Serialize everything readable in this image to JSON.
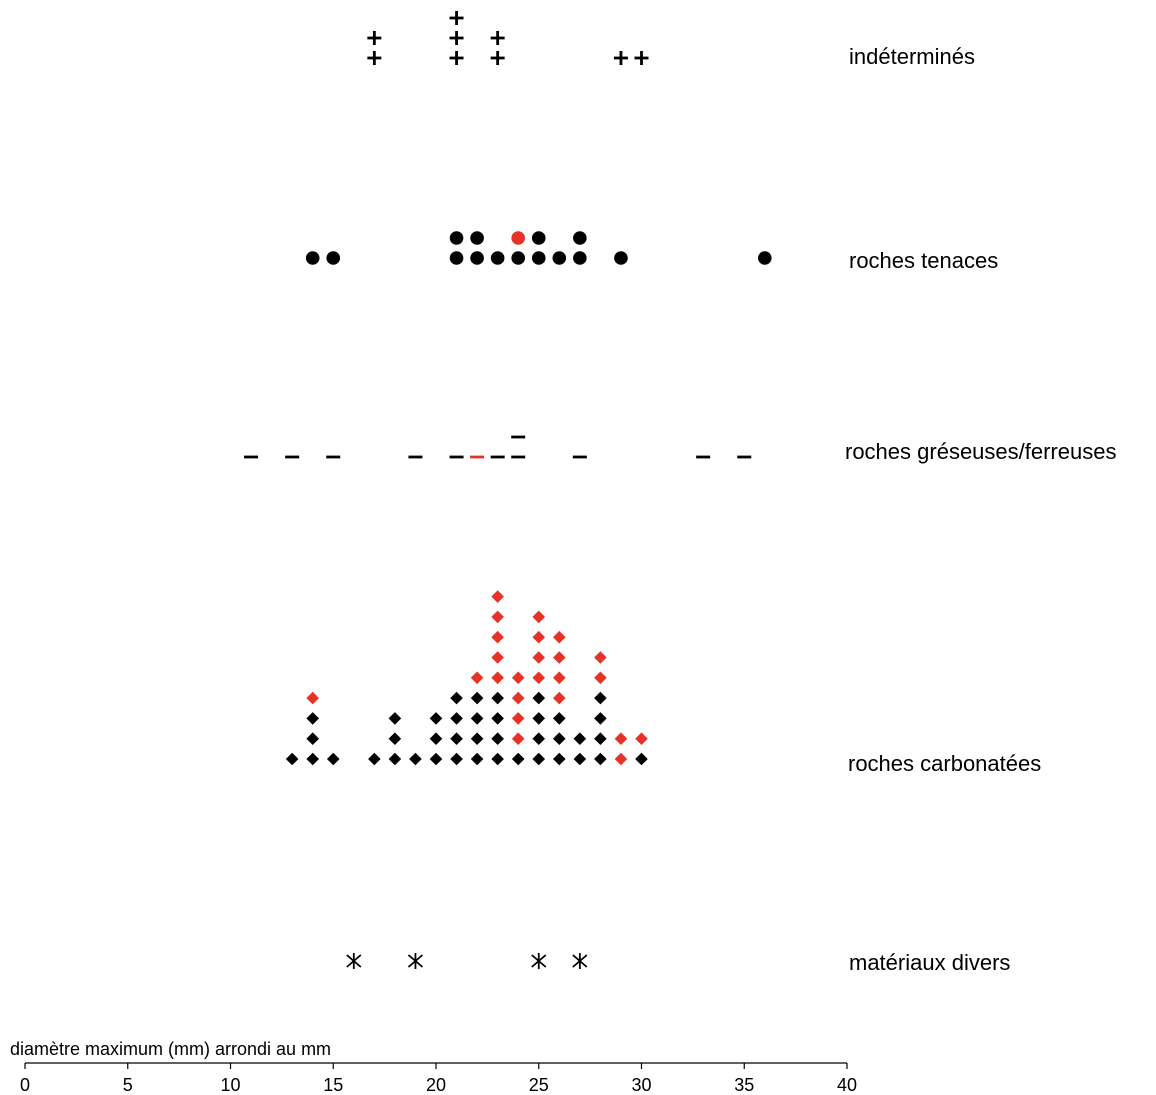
{
  "chart_data": {
    "type": "scatter",
    "subtype": "dot-plot",
    "xlabel": "diamètre maximum (mm) arrondi au mm",
    "xlim": [
      0,
      40
    ],
    "xticks": [
      0,
      5,
      10,
      15,
      20,
      25,
      30,
      35,
      40
    ],
    "grid": false,
    "legend": "none",
    "colors": {
      "black": "#000000",
      "red": "#e63327"
    },
    "categories": [
      "indéterminés",
      "roches tenaces",
      "roches gréseuses/ferreuses",
      "roches carbonatées",
      "matériaux divers"
    ],
    "series": [
      {
        "name": "indéterminés",
        "marker": "plus",
        "columns": [
          {
            "x": 17,
            "stack": [
              "black",
              "black"
            ]
          },
          {
            "x": 21,
            "stack": [
              "black",
              "black",
              "black"
            ]
          },
          {
            "x": 23,
            "stack": [
              "black",
              "black"
            ]
          },
          {
            "x": 29,
            "stack": [
              "black"
            ]
          },
          {
            "x": 30,
            "stack": [
              "black"
            ]
          }
        ]
      },
      {
        "name": "roches tenaces",
        "marker": "circle",
        "columns": [
          {
            "x": 14,
            "stack": [
              "black"
            ]
          },
          {
            "x": 15,
            "stack": [
              "black"
            ]
          },
          {
            "x": 21,
            "stack": [
              "black",
              "black"
            ]
          },
          {
            "x": 22,
            "stack": [
              "black",
              "black"
            ]
          },
          {
            "x": 23,
            "stack": [
              "black"
            ]
          },
          {
            "x": 24,
            "stack": [
              "black",
              "red"
            ]
          },
          {
            "x": 25,
            "stack": [
              "black",
              "black"
            ]
          },
          {
            "x": 26,
            "stack": [
              "black"
            ]
          },
          {
            "x": 27,
            "stack": [
              "black",
              "black"
            ]
          },
          {
            "x": 29,
            "stack": [
              "black"
            ]
          },
          {
            "x": 36,
            "stack": [
              "black"
            ]
          }
        ]
      },
      {
        "name": "roches gréseuses/ferreuses",
        "marker": "dash",
        "columns": [
          {
            "x": 11,
            "stack": [
              "black"
            ]
          },
          {
            "x": 13,
            "stack": [
              "black"
            ]
          },
          {
            "x": 15,
            "stack": [
              "black"
            ]
          },
          {
            "x": 19,
            "stack": [
              "black"
            ]
          },
          {
            "x": 21,
            "stack": [
              "black"
            ]
          },
          {
            "x": 22,
            "stack": [
              "red"
            ]
          },
          {
            "x": 23,
            "stack": [
              "black"
            ]
          },
          {
            "x": 24,
            "stack": [
              "black",
              "black"
            ]
          },
          {
            "x": 27,
            "stack": [
              "black"
            ]
          },
          {
            "x": 33,
            "stack": [
              "black"
            ]
          },
          {
            "x": 35,
            "stack": [
              "black"
            ]
          }
        ]
      },
      {
        "name": "roches carbonatées",
        "marker": "diamond",
        "columns": [
          {
            "x": 13,
            "stack": [
              "black"
            ]
          },
          {
            "x": 14,
            "stack": [
              "black",
              "black",
              "black",
              "red"
            ]
          },
          {
            "x": 15,
            "stack": [
              "black"
            ]
          },
          {
            "x": 17,
            "stack": [
              "black"
            ]
          },
          {
            "x": 18,
            "stack": [
              "black",
              "black",
              "black"
            ]
          },
          {
            "x": 19,
            "stack": [
              "black"
            ]
          },
          {
            "x": 20,
            "stack": [
              "black",
              "black",
              "black"
            ]
          },
          {
            "x": 21,
            "stack": [
              "black",
              "black",
              "black",
              "black"
            ]
          },
          {
            "x": 22,
            "stack": [
              "black",
              "black",
              "black",
              "black",
              "red"
            ]
          },
          {
            "x": 23,
            "stack": [
              "black",
              "black",
              "black",
              "black",
              "red",
              "red",
              "red",
              "red",
              "red"
            ]
          },
          {
            "x": 24,
            "stack": [
              "black",
              "red",
              "red",
              "red",
              "red"
            ]
          },
          {
            "x": 25,
            "stack": [
              "black",
              "black",
              "black",
              "black",
              "red",
              "red",
              "red",
              "red"
            ]
          },
          {
            "x": 26,
            "stack": [
              "black",
              "black",
              "black",
              "red",
              "red",
              "red",
              "red"
            ]
          },
          {
            "x": 27,
            "stack": [
              "black",
              "black"
            ]
          },
          {
            "x": 28,
            "stack": [
              "black",
              "black",
              "black",
              "black",
              "red",
              "red"
            ]
          },
          {
            "x": 29,
            "stack": [
              "red",
              "red"
            ]
          },
          {
            "x": 30,
            "stack": [
              "black",
              "red"
            ]
          }
        ]
      },
      {
        "name": "matériaux divers",
        "marker": "asterisk",
        "columns": [
          {
            "x": 16,
            "stack": [
              "black"
            ]
          },
          {
            "x": 19,
            "stack": [
              "black"
            ]
          },
          {
            "x": 25,
            "stack": [
              "black"
            ]
          },
          {
            "x": 27,
            "stack": [
              "black"
            ]
          }
        ]
      }
    ]
  }
}
